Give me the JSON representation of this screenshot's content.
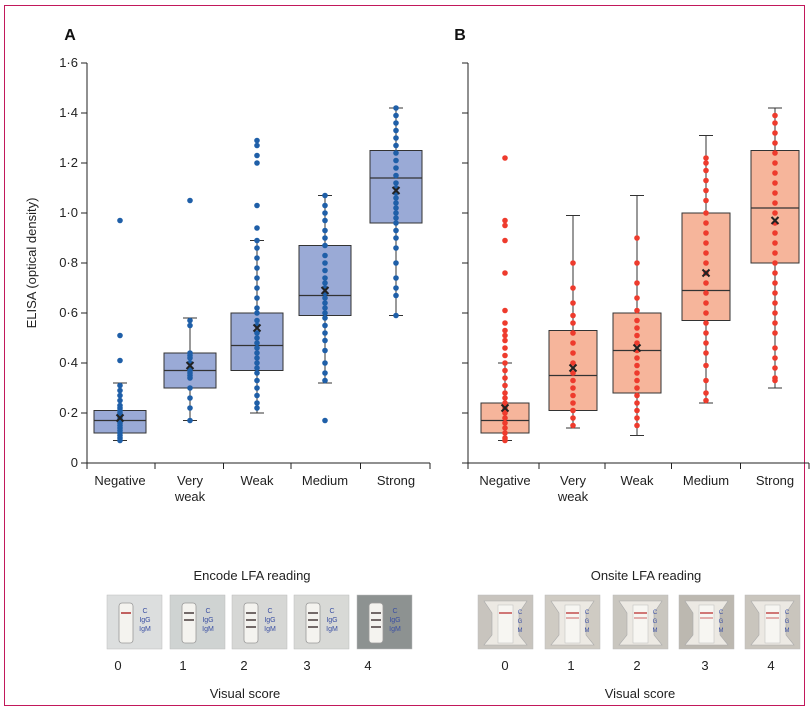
{
  "colors": {
    "frame": "#c2185b",
    "a_box_fill": "#9aaad6",
    "a_dot": "#1f5fa8",
    "b_box_fill": "#f6b59b",
    "b_dot": "#ee3b2d",
    "mean_marker": "#222222"
  },
  "ylabel": "ELISA (optical density)",
  "yticks": [
    "0",
    "0·2",
    "0·4",
    "0·6",
    "0·8",
    "1·0",
    "1·2",
    "1·4",
    "1·6"
  ],
  "panels": [
    {
      "id": "A",
      "xlabel": "Encode LFA reading",
      "score_label": "Visual score",
      "strip_labels": [
        "C",
        "IgG",
        "IgM"
      ]
    },
    {
      "id": "B",
      "xlabel": "Onsite LFA reading",
      "score_label": "Visual score",
      "strip_labels": [
        "C",
        "G",
        "M"
      ]
    }
  ],
  "categories": [
    [
      "Negative"
    ],
    [
      "Very",
      "weak"
    ],
    [
      "Weak"
    ],
    [
      "Medium"
    ],
    [
      "Strong"
    ]
  ],
  "scores": [
    "0",
    "1",
    "2",
    "3",
    "4"
  ],
  "chart_data": [
    {
      "type": "box",
      "panel": "A",
      "ylim": [
        0,
        1.6
      ],
      "categories": [
        "Negative",
        "Very weak",
        "Weak",
        "Medium",
        "Strong"
      ],
      "boxes": [
        {
          "min": 0.09,
          "q1": 0.12,
          "median": 0.17,
          "q3": 0.21,
          "max": 0.32,
          "mean": 0.18
        },
        {
          "min": 0.17,
          "q1": 0.3,
          "median": 0.37,
          "q3": 0.44,
          "max": 0.58,
          "mean": 0.39
        },
        {
          "min": 0.2,
          "q1": 0.37,
          "median": 0.47,
          "q3": 0.6,
          "max": 0.89,
          "mean": 0.54
        },
        {
          "min": 0.32,
          "q1": 0.59,
          "median": 0.67,
          "q3": 0.87,
          "max": 1.07,
          "mean": 0.69
        },
        {
          "min": 0.59,
          "q1": 0.96,
          "median": 1.14,
          "q3": 1.25,
          "max": 1.42,
          "mean": 1.09
        }
      ],
      "points": [
        [
          0.97,
          0.51,
          0.41,
          0.31,
          0.29,
          0.27,
          0.25,
          0.23,
          0.22,
          0.21,
          0.2,
          0.19,
          0.18,
          0.17,
          0.16,
          0.15,
          0.14,
          0.13,
          0.12,
          0.11,
          0.1,
          0.09
        ],
        [
          1.05,
          0.57,
          0.55,
          0.44,
          0.43,
          0.42,
          0.4,
          0.38,
          0.37,
          0.36,
          0.35,
          0.34,
          0.3,
          0.26,
          0.22,
          0.17
        ],
        [
          1.29,
          1.27,
          1.23,
          1.2,
          1.03,
          0.94,
          0.89,
          0.86,
          0.82,
          0.78,
          0.74,
          0.7,
          0.66,
          0.62,
          0.6,
          0.57,
          0.55,
          0.52,
          0.5,
          0.48,
          0.46,
          0.44,
          0.42,
          0.4,
          0.38,
          0.36,
          0.33,
          0.3,
          0.27,
          0.24,
          0.22
        ],
        [
          1.07,
          1.03,
          1.0,
          0.97,
          0.93,
          0.9,
          0.87,
          0.83,
          0.8,
          0.77,
          0.74,
          0.72,
          0.7,
          0.68,
          0.66,
          0.64,
          0.62,
          0.6,
          0.58,
          0.55,
          0.52,
          0.49,
          0.45,
          0.4,
          0.36,
          0.33,
          0.17
        ],
        [
          1.42,
          1.39,
          1.36,
          1.33,
          1.3,
          1.27,
          1.24,
          1.21,
          1.18,
          1.15,
          1.12,
          1.1,
          1.08,
          1.06,
          1.04,
          1.02,
          1.0,
          0.98,
          0.96,
          0.93,
          0.9,
          0.86,
          0.8,
          0.74,
          0.7,
          0.67,
          0.59
        ]
      ]
    },
    {
      "type": "box",
      "panel": "B",
      "ylim": [
        0,
        1.6
      ],
      "categories": [
        "Negative",
        "Very weak",
        "Weak",
        "Medium",
        "Strong"
      ],
      "boxes": [
        {
          "min": 0.09,
          "q1": 0.12,
          "median": 0.17,
          "q3": 0.24,
          "max": 0.4,
          "mean": 0.22
        },
        {
          "min": 0.14,
          "q1": 0.21,
          "median": 0.35,
          "q3": 0.53,
          "max": 0.99,
          "mean": 0.38
        },
        {
          "min": 0.11,
          "q1": 0.28,
          "median": 0.45,
          "q3": 0.6,
          "max": 1.07,
          "mean": 0.46
        },
        {
          "min": 0.24,
          "q1": 0.57,
          "median": 0.69,
          "q3": 1.0,
          "max": 1.31,
          "mean": 0.76
        },
        {
          "min": 0.3,
          "q1": 0.8,
          "median": 1.02,
          "q3": 1.25,
          "max": 1.42,
          "mean": 0.97
        }
      ],
      "points": [
        [
          1.22,
          0.97,
          0.95,
          0.89,
          0.76,
          0.61,
          0.56,
          0.53,
          0.51,
          0.49,
          0.46,
          0.43,
          0.4,
          0.37,
          0.34,
          0.31,
          0.28,
          0.26,
          0.24,
          0.22,
          0.2,
          0.18,
          0.16,
          0.14,
          0.12,
          0.1,
          0.09
        ],
        [
          0.8,
          0.7,
          0.64,
          0.59,
          0.56,
          0.52,
          0.48,
          0.44,
          0.4,
          0.36,
          0.33,
          0.3,
          0.27,
          0.24,
          0.21,
          0.18,
          0.15
        ],
        [
          0.9,
          0.8,
          0.72,
          0.66,
          0.61,
          0.57,
          0.54,
          0.51,
          0.48,
          0.45,
          0.42,
          0.39,
          0.36,
          0.33,
          0.3,
          0.27,
          0.24,
          0.21,
          0.18,
          0.15
        ],
        [
          1.22,
          1.2,
          1.17,
          1.13,
          1.09,
          1.05,
          1.0,
          0.96,
          0.92,
          0.88,
          0.84,
          0.8,
          0.76,
          0.72,
          0.68,
          0.64,
          0.6,
          0.56,
          0.52,
          0.48,
          0.44,
          0.39,
          0.33,
          0.28,
          0.25
        ],
        [
          1.39,
          1.36,
          1.32,
          1.28,
          1.24,
          1.2,
          1.16,
          1.12,
          1.08,
          1.04,
          1.0,
          0.96,
          0.92,
          0.88,
          0.84,
          0.8,
          0.76,
          0.72,
          0.68,
          0.64,
          0.6,
          0.56,
          0.52,
          0.46,
          0.42,
          0.38,
          0.34,
          0.33
        ]
      ]
    }
  ]
}
